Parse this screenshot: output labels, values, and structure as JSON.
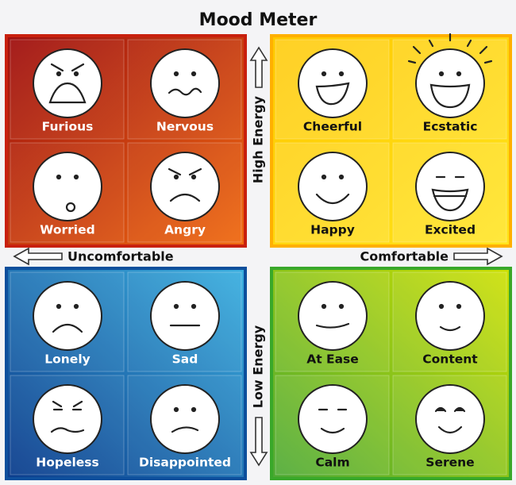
{
  "title": "Mood Meter",
  "axes": {
    "high": "High Energy",
    "low": "Low Energy",
    "left": "Uncomfortable",
    "right": "Comfortable"
  },
  "quadrants": [
    {
      "moods": [
        "Furious",
        "Nervous",
        "Worried",
        "Angry"
      ]
    },
    {
      "moods": [
        "Cheerful",
        "Ecstatic",
        "Happy",
        "Excited"
      ]
    },
    {
      "moods": [
        "Lonely",
        "Sad",
        "Hopeless",
        "Disappointed"
      ]
    },
    {
      "moods": [
        "At Ease",
        "Content",
        "Calm",
        "Serene"
      ]
    }
  ]
}
